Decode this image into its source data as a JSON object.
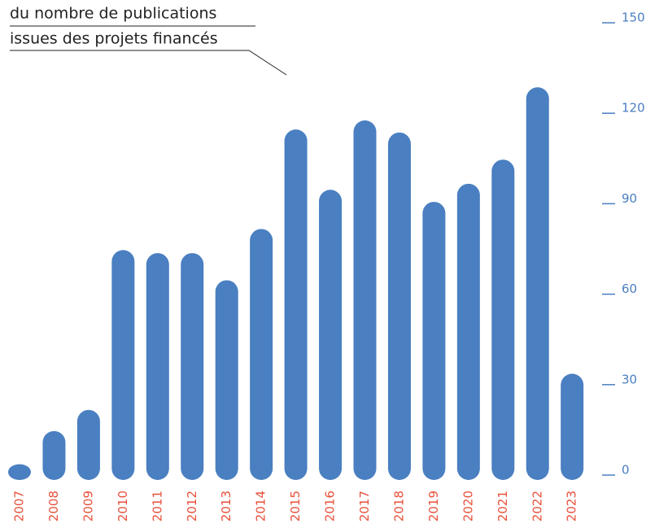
{
  "chart_data": {
    "type": "bar",
    "title_lines": [
      "du nombre de publications",
      "issues des projets financés"
    ],
    "categories": [
      "2007",
      "2008",
      "2009",
      "2010",
      "2011",
      "2012",
      "2013",
      "2014",
      "2015",
      "2016",
      "2017",
      "2018",
      "2019",
      "2020",
      "2021",
      "2022",
      "2023"
    ],
    "values": [
      2,
      13,
      20,
      73,
      72,
      72,
      63,
      80,
      113,
      93,
      116,
      112,
      89,
      95,
      103,
      127,
      32
    ],
    "color": "#4a7fc1",
    "category_color": "#e8503a",
    "tick_color": "#4a7fc1",
    "ylim": [
      0,
      150
    ],
    "yticks": [
      0,
      30,
      60,
      90,
      120,
      150
    ]
  }
}
